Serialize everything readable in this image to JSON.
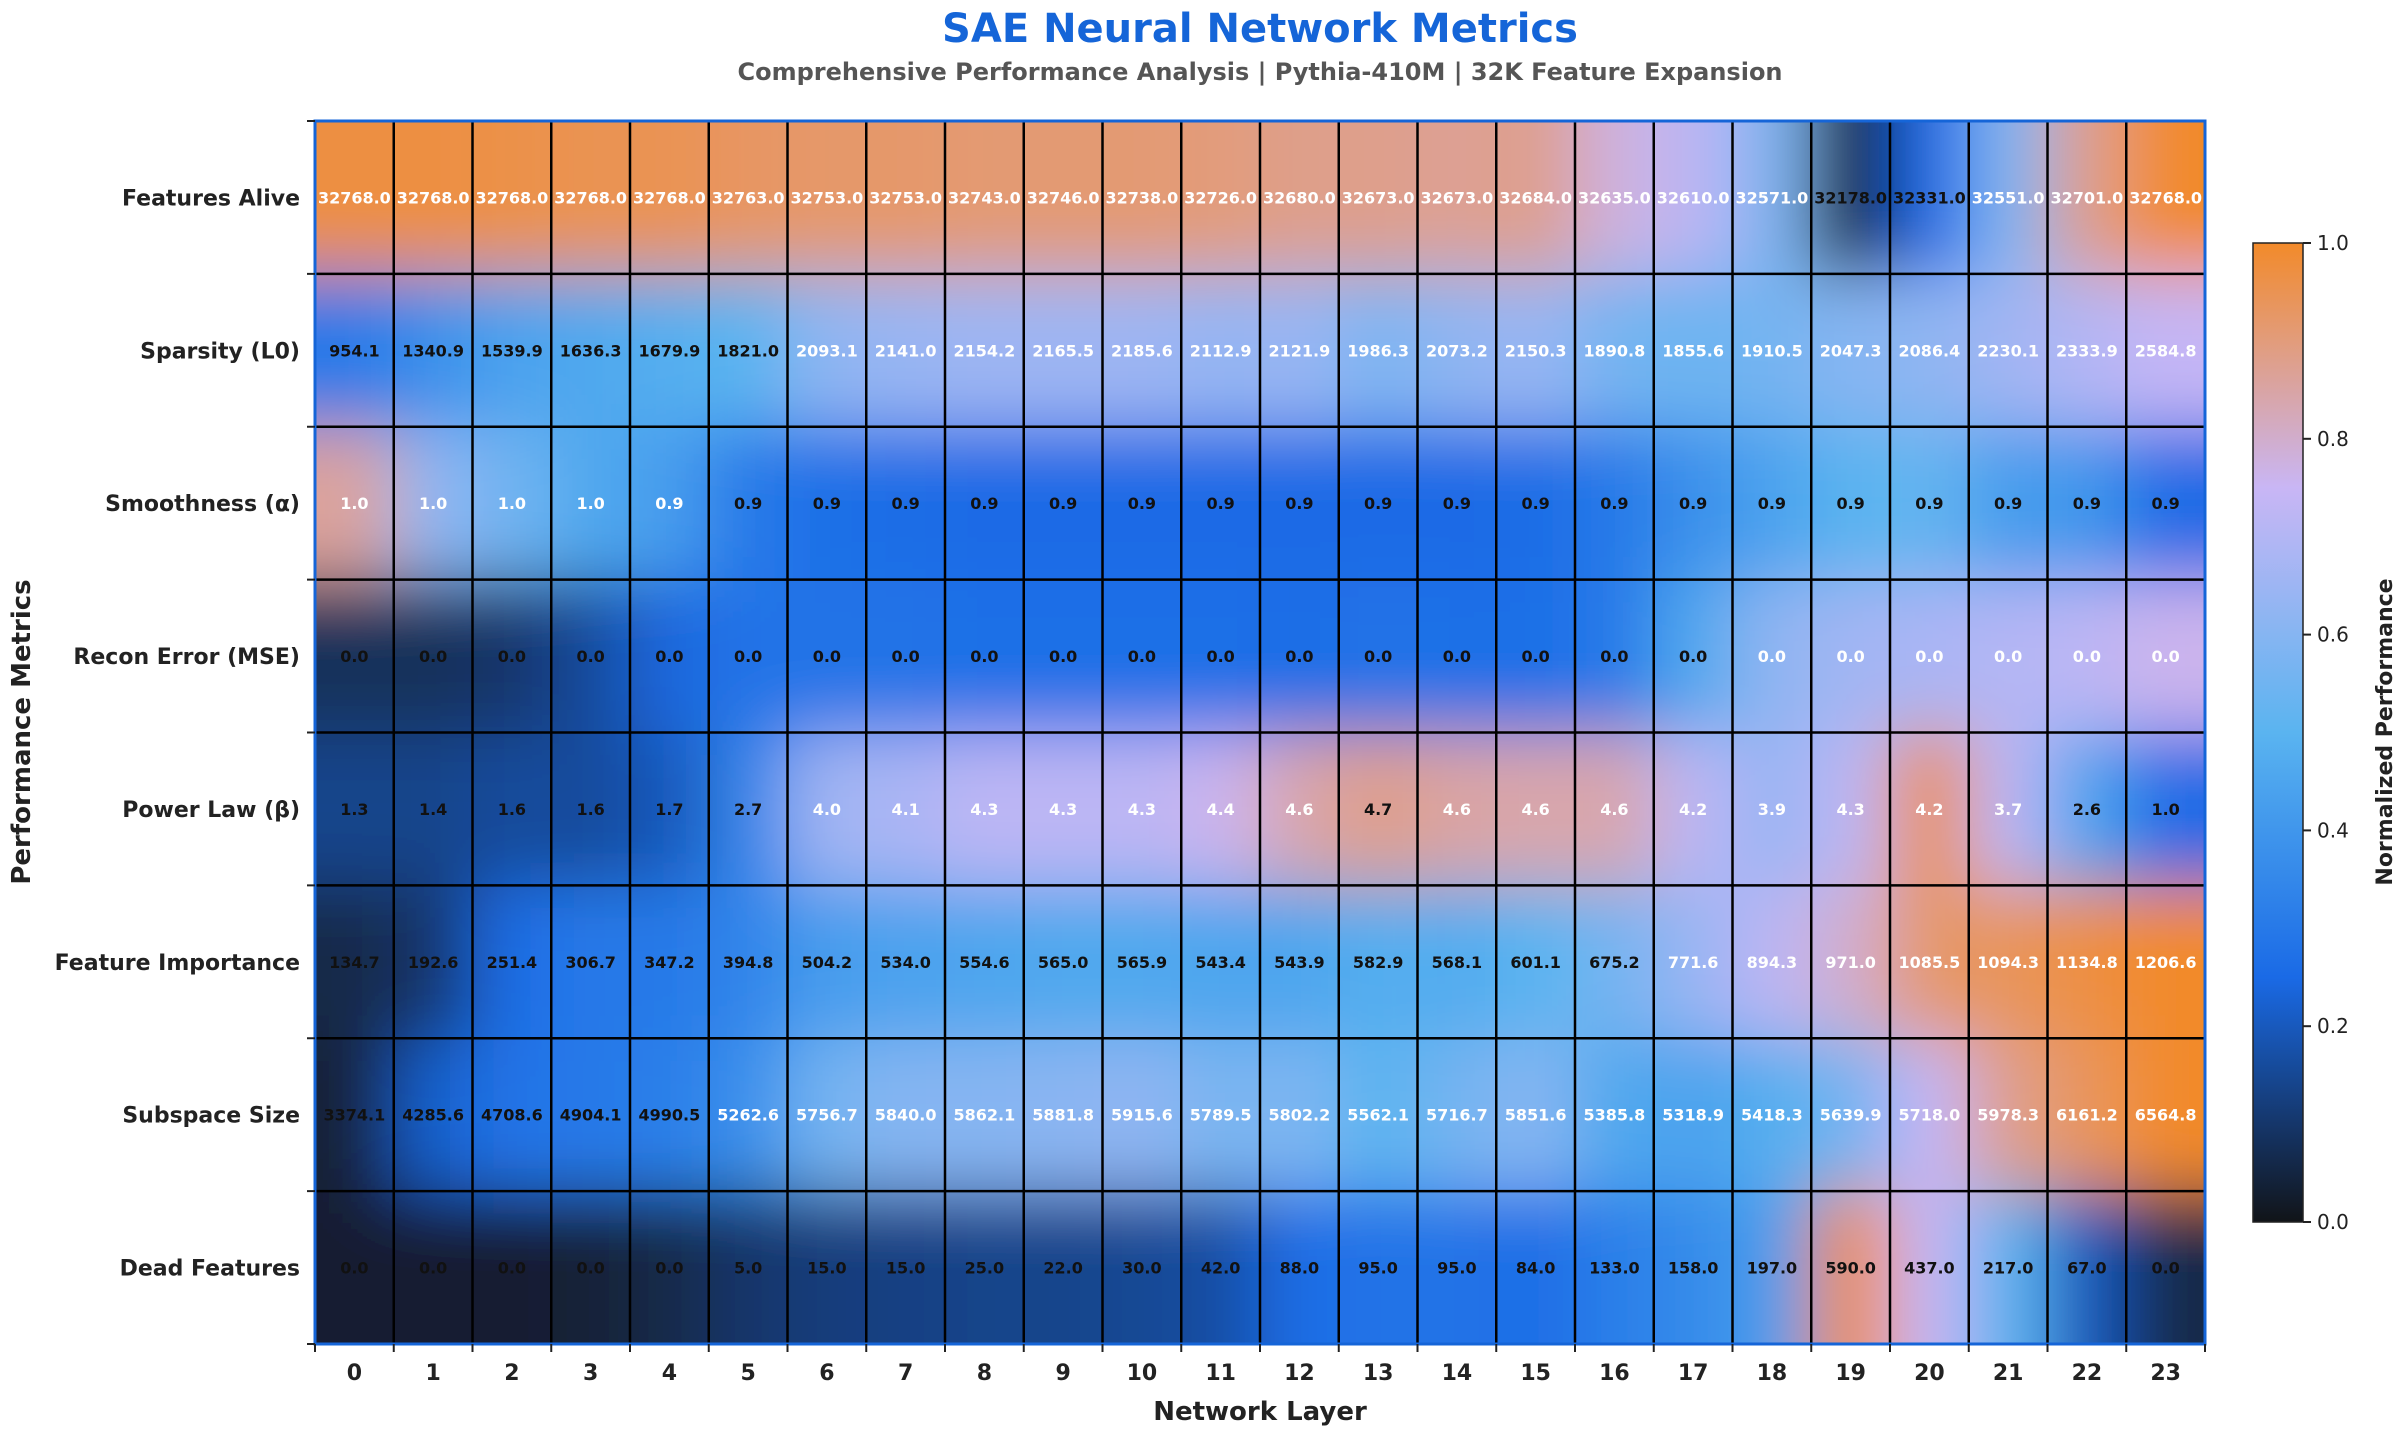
{
  "chart_data": {
    "type": "heatmap",
    "title": "SAE Neural Network Metrics",
    "subtitle": "Comprehensive Performance Analysis | Pythia-410M | 32K Feature Expansion",
    "xlabel": "Network Layer",
    "ylabel": "Performance Metrics",
    "colorbar_label": "Normalized Performance",
    "colorbar_ticks": [
      "0.0",
      "0.2",
      "0.4",
      "0.6",
      "0.8",
      "1.0"
    ],
    "vrange": [
      0,
      1
    ],
    "colormap": [
      "#111418",
      "#1a6ae6",
      "#5ab4f0",
      "#c9b6f5",
      "#f28a2a"
    ],
    "x": [
      "0",
      "1",
      "2",
      "3",
      "4",
      "5",
      "6",
      "7",
      "8",
      "9",
      "10",
      "11",
      "12",
      "13",
      "14",
      "15",
      "16",
      "17",
      "18",
      "19",
      "20",
      "21",
      "22",
      "23"
    ],
    "rows": [
      {
        "name": "Features Alive",
        "values": [
          "32768.0",
          "32768.0",
          "32768.0",
          "32768.0",
          "32768.0",
          "32763.0",
          "32753.0",
          "32753.0",
          "32743.0",
          "32746.0",
          "32738.0",
          "32726.0",
          "32680.0",
          "32673.0",
          "32673.0",
          "32684.0",
          "32635.0",
          "32610.0",
          "32571.0",
          "32178.0",
          "32331.0",
          "32551.0",
          "32701.0",
          "32768.0"
        ]
      },
      {
        "name": "Sparsity (L0)",
        "values": [
          "954.1",
          "1340.9",
          "1539.9",
          "1636.3",
          "1679.9",
          "1821.0",
          "2093.1",
          "2141.0",
          "2154.2",
          "2165.5",
          "2185.6",
          "2112.9",
          "2121.9",
          "1986.3",
          "2073.2",
          "2150.3",
          "1890.8",
          "1855.6",
          "1910.5",
          "2047.3",
          "2086.4",
          "2230.1",
          "2333.9",
          "2584.8"
        ]
      },
      {
        "name": "Smoothness (α)",
        "values": [
          "1.0",
          "1.0",
          "1.0",
          "1.0",
          "0.9",
          "0.9",
          "0.9",
          "0.9",
          "0.9",
          "0.9",
          "0.9",
          "0.9",
          "0.9",
          "0.9",
          "0.9",
          "0.9",
          "0.9",
          "0.9",
          "0.9",
          "0.9",
          "0.9",
          "0.9",
          "0.9",
          "0.9"
        ]
      },
      {
        "name": "Recon Error (MSE)",
        "values": [
          "0.0",
          "0.0",
          "0.0",
          "0.0",
          "0.0",
          "0.0",
          "0.0",
          "0.0",
          "0.0",
          "0.0",
          "0.0",
          "0.0",
          "0.0",
          "0.0",
          "0.0",
          "0.0",
          "0.0",
          "0.0",
          "0.0",
          "0.0",
          "0.0",
          "0.0",
          "0.0",
          "0.0"
        ]
      },
      {
        "name": "Power Law (β)",
        "values": [
          "1.3",
          "1.4",
          "1.6",
          "1.6",
          "1.7",
          "2.7",
          "4.0",
          "4.1",
          "4.3",
          "4.3",
          "4.3",
          "4.4",
          "4.6",
          "4.7",
          "4.6",
          "4.6",
          "4.6",
          "4.2",
          "3.9",
          "4.3",
          "4.2",
          "3.7",
          "2.6",
          "1.0"
        ]
      },
      {
        "name": "Feature Importance",
        "values": [
          "134.7",
          "192.6",
          "251.4",
          "306.7",
          "347.2",
          "394.8",
          "504.2",
          "534.0",
          "554.6",
          "565.0",
          "565.9",
          "543.4",
          "543.9",
          "582.9",
          "568.1",
          "601.1",
          "675.2",
          "771.6",
          "894.3",
          "971.0",
          "1085.5",
          "1094.3",
          "1134.8",
          "1206.6"
        ]
      },
      {
        "name": "Subspace Size",
        "values": [
          "3374.1",
          "4285.6",
          "4708.6",
          "4904.1",
          "4990.5",
          "5262.6",
          "5756.7",
          "5840.0",
          "5862.1",
          "5881.8",
          "5915.6",
          "5789.5",
          "5802.2",
          "5562.1",
          "5716.7",
          "5851.6",
          "5385.8",
          "5318.9",
          "5418.3",
          "5639.9",
          "5718.0",
          "5978.3",
          "6161.2",
          "6564.8"
        ]
      },
      {
        "name": "Dead Features",
        "values": [
          "0.0",
          "0.0",
          "0.0",
          "0.0",
          "0.0",
          "5.0",
          "15.0",
          "15.0",
          "25.0",
          "22.0",
          "30.0",
          "42.0",
          "88.0",
          "95.0",
          "95.0",
          "84.0",
          "133.0",
          "158.0",
          "197.0",
          "590.0",
          "437.0",
          "217.0",
          "67.0",
          "0.0"
        ]
      }
    ],
    "normalized": [
      [
        0.97,
        0.97,
        0.96,
        0.95,
        0.95,
        0.93,
        0.92,
        0.92,
        0.91,
        0.91,
        0.91,
        0.9,
        0.88,
        0.88,
        0.87,
        0.88,
        0.78,
        0.72,
        0.58,
        0.0,
        0.25,
        0.58,
        0.88,
        1.0
      ],
      [
        0.3,
        0.38,
        0.44,
        0.46,
        0.48,
        0.5,
        0.62,
        0.64,
        0.65,
        0.65,
        0.65,
        0.63,
        0.64,
        0.58,
        0.62,
        0.64,
        0.56,
        0.54,
        0.56,
        0.6,
        0.62,
        0.66,
        0.7,
        0.74
      ],
      [
        0.86,
        0.62,
        0.55,
        0.46,
        0.42,
        0.3,
        0.27,
        0.26,
        0.25,
        0.25,
        0.25,
        0.25,
        0.25,
        0.25,
        0.25,
        0.26,
        0.3,
        0.38,
        0.44,
        0.5,
        0.52,
        0.42,
        0.4,
        0.25
      ],
      [
        0.08,
        0.08,
        0.1,
        0.16,
        0.24,
        0.28,
        0.28,
        0.28,
        0.27,
        0.27,
        0.27,
        0.27,
        0.26,
        0.28,
        0.27,
        0.27,
        0.3,
        0.46,
        0.62,
        0.66,
        0.68,
        0.7,
        0.72,
        0.76
      ],
      [
        0.14,
        0.14,
        0.16,
        0.16,
        0.2,
        0.34,
        0.66,
        0.68,
        0.72,
        0.72,
        0.72,
        0.76,
        0.84,
        0.88,
        0.85,
        0.84,
        0.84,
        0.72,
        0.64,
        0.72,
        0.96,
        0.72,
        0.45,
        0.25
      ],
      [
        0.06,
        0.1,
        0.26,
        0.3,
        0.3,
        0.34,
        0.42,
        0.44,
        0.45,
        0.46,
        0.46,
        0.45,
        0.45,
        0.48,
        0.47,
        0.5,
        0.56,
        0.64,
        0.72,
        0.8,
        0.92,
        0.94,
        0.97,
        1.0
      ],
      [
        0.04,
        0.22,
        0.28,
        0.3,
        0.32,
        0.38,
        0.56,
        0.6,
        0.6,
        0.61,
        0.62,
        0.57,
        0.58,
        0.5,
        0.56,
        0.6,
        0.46,
        0.44,
        0.48,
        0.56,
        0.74,
        0.88,
        0.94,
        1.0
      ],
      [
        0.03,
        0.03,
        0.03,
        0.04,
        0.06,
        0.1,
        0.12,
        0.13,
        0.14,
        0.14,
        0.15,
        0.17,
        0.26,
        0.28,
        0.28,
        0.26,
        0.32,
        0.36,
        0.42,
        0.98,
        0.74,
        0.5,
        0.2,
        0.06
      ]
    ],
    "label_colors": [
      [
        "w",
        "w",
        "w",
        "w",
        "w",
        "w",
        "w",
        "w",
        "w",
        "w",
        "w",
        "w",
        "w",
        "w",
        "w",
        "w",
        "w",
        "w",
        "w",
        "k",
        "k",
        "w",
        "w",
        "w"
      ],
      [
        "k",
        "k",
        "k",
        "k",
        "k",
        "k",
        "w",
        "w",
        "w",
        "w",
        "w",
        "w",
        "w",
        "w",
        "w",
        "w",
        "w",
        "w",
        "w",
        "w",
        "w",
        "w",
        "w",
        "w"
      ],
      [
        "w",
        "w",
        "w",
        "w",
        "w",
        "k",
        "k",
        "k",
        "k",
        "k",
        "k",
        "k",
        "k",
        "k",
        "k",
        "k",
        "k",
        "k",
        "k",
        "k",
        "k",
        "k",
        "k",
        "k"
      ],
      [
        "k",
        "k",
        "k",
        "k",
        "k",
        "k",
        "k",
        "k",
        "k",
        "k",
        "k",
        "k",
        "k",
        "k",
        "k",
        "k",
        "k",
        "k",
        "w",
        "w",
        "w",
        "w",
        "w",
        "w"
      ],
      [
        "k",
        "k",
        "k",
        "k",
        "k",
        "k",
        "w",
        "w",
        "w",
        "w",
        "w",
        "w",
        "w",
        "k",
        "w",
        "w",
        "w",
        "w",
        "w",
        "w",
        "w",
        "w",
        "k",
        "k"
      ],
      [
        "k",
        "k",
        "k",
        "k",
        "k",
        "k",
        "k",
        "k",
        "k",
        "k",
        "k",
        "k",
        "k",
        "k",
        "k",
        "k",
        "k",
        "w",
        "w",
        "w",
        "w",
        "w",
        "w",
        "w"
      ],
      [
        "k",
        "k",
        "k",
        "k",
        "k",
        "w",
        "w",
        "w",
        "w",
        "w",
        "w",
        "w",
        "w",
        "w",
        "w",
        "w",
        "w",
        "w",
        "w",
        "w",
        "w",
        "w",
        "w",
        "w"
      ],
      [
        "k",
        "k",
        "k",
        "k",
        "k",
        "k",
        "k",
        "k",
        "k",
        "k",
        "k",
        "k",
        "k",
        "k",
        "k",
        "k",
        "k",
        "k",
        "k",
        "k",
        "k",
        "k",
        "k",
        "k"
      ]
    ]
  }
}
